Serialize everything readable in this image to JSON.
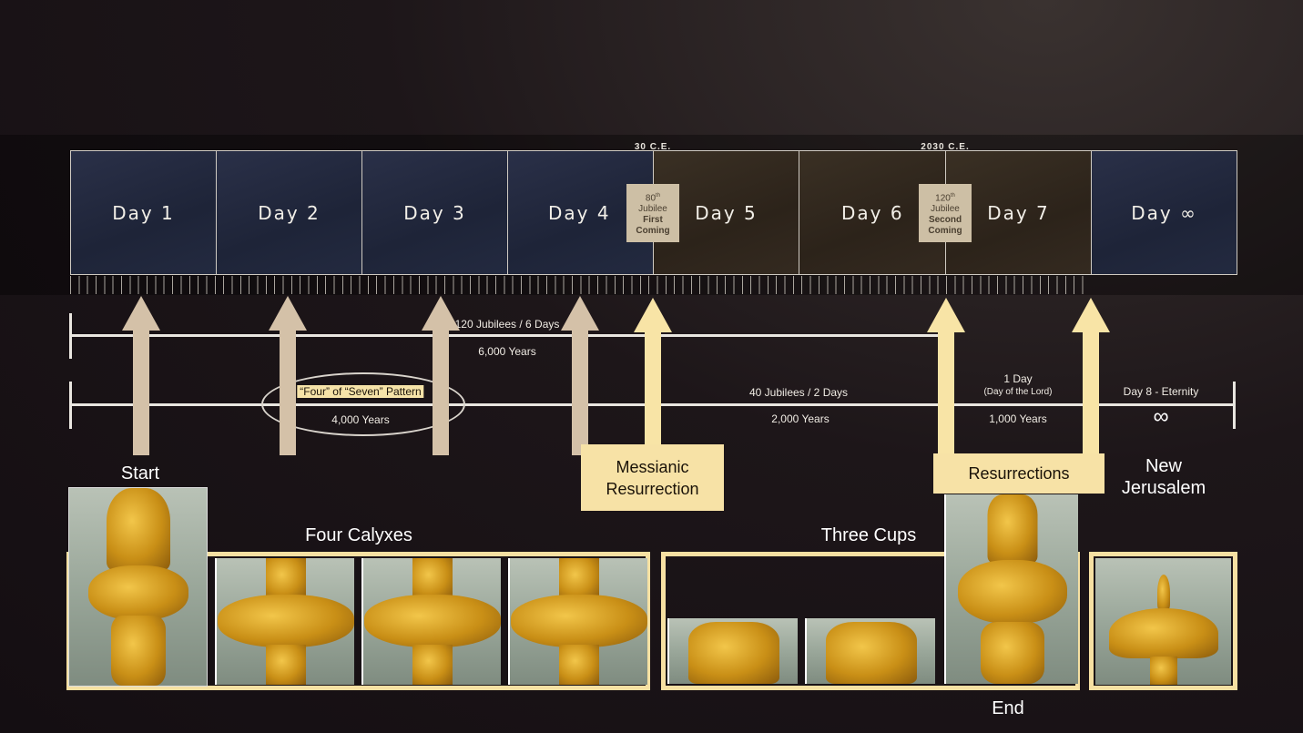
{
  "era_labels": {
    "first": "30 C.E.",
    "second": "2030 C.E."
  },
  "days": [
    "Day 1",
    "Day 2",
    "Day 3",
    "Day 4",
    "Day 5",
    "Day 6",
    "Day 7",
    "Day ∞"
  ],
  "jubilee_first": {
    "num": "80",
    "sup": "th",
    "word": "Jubilee",
    "line1": "First",
    "line2": "Coming"
  },
  "jubilee_second": {
    "num": "120",
    "sup": "th",
    "word": "Jubilee",
    "line1": "Second",
    "line2": "Coming"
  },
  "timeline_top": {
    "label": "120 Jubilees / 6 Days",
    "years": "6,000 Years"
  },
  "timeline_bottom": {
    "pattern_label": "“Four” of “Seven” Pattern",
    "first_years": "4,000 Years",
    "mid_label": "40 Jubilees / 2 Days",
    "mid_years": "2,000 Years",
    "day_label": "1 Day",
    "day_sub": "(Day of the Lord)",
    "day_years": "1,000 Years",
    "eternity_label": "Day 8 - Eternity",
    "eternity_symbol": "∞"
  },
  "boxes": {
    "messianic": [
      "Messianic",
      "Resurrection"
    ],
    "resurrections": "Resurrections"
  },
  "captions": {
    "start": "Start",
    "four_calyxes": "Four Calyxes",
    "three_cups": "Three Cups",
    "new_jerusalem": [
      "New",
      "Jerusalem"
    ],
    "end": "End"
  }
}
